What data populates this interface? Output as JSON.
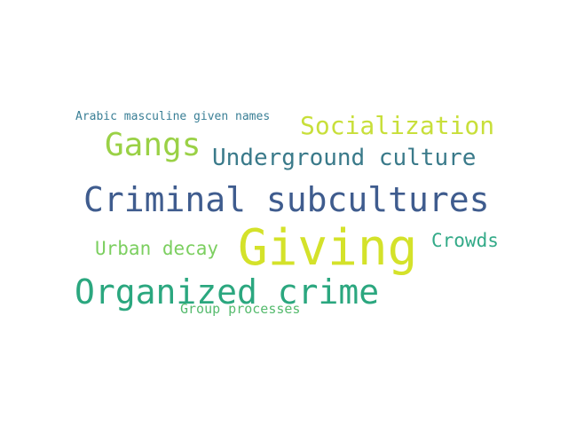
{
  "word_cloud": {
    "words": [
      {
        "text": "Giving",
        "color": "#d4e22a"
      },
      {
        "text": "Criminal subcultures",
        "color": "#3f5c8e"
      },
      {
        "text": "Organized crime",
        "color": "#2ba77f"
      },
      {
        "text": "Gangs",
        "color": "#9ad146"
      },
      {
        "text": "Socialization",
        "color": "#c8df3a"
      },
      {
        "text": "Underground culture",
        "color": "#3a7a8a"
      },
      {
        "text": "Urban decay",
        "color": "#7ccf60"
      },
      {
        "text": "Crowds",
        "color": "#33aa88"
      },
      {
        "text": "Group processes",
        "color": "#56bb6e"
      },
      {
        "text": "Arabic masculine given names",
        "color": "#3a7f96"
      }
    ]
  }
}
